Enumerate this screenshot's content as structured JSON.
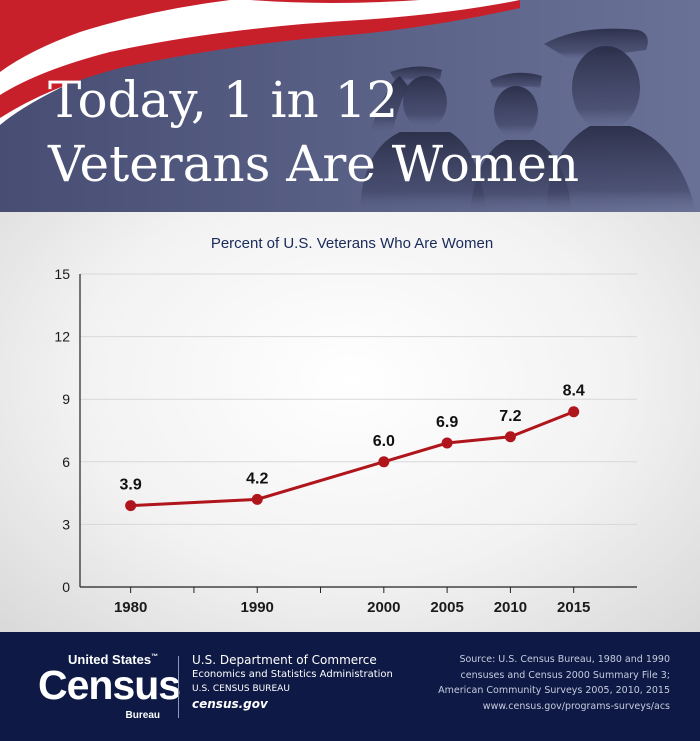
{
  "header": {
    "title_line1": "Today, 1 in 12",
    "title_line2": "Veterans Are Women"
  },
  "chart_data": {
    "type": "line",
    "title": "Percent of U.S. Veterans Who Are Women",
    "xlabel": "",
    "ylabel": "",
    "x": [
      1980,
      1990,
      2000,
      2005,
      2010,
      2015
    ],
    "series": [
      {
        "values": [
          3.9,
          4.2,
          6.0,
          6.9,
          7.2,
          8.4
        ]
      }
    ],
    "data_labels": [
      "3.9",
      "4.2",
      "6.0",
      "6.9",
      "7.2",
      "8.4"
    ],
    "xlim": [
      1976,
      2020
    ],
    "ylim": [
      0,
      15
    ],
    "y_ticks": [
      0,
      3,
      6,
      9,
      12,
      15
    ],
    "x_tick_labels": [
      1980,
      1990,
      2000,
      2005,
      2010,
      2015
    ],
    "minor_x_ticks": [
      1985,
      1995
    ],
    "grid": true,
    "line_color": "#b0151c"
  },
  "footer": {
    "logo_top": "United States",
    "logo_tm": "™",
    "logo_main": "Census",
    "logo_sub": "Bureau",
    "dept_line1": "U.S. Department of Commerce",
    "dept_line2": "Economics and Statistics Administration",
    "dept_line3": "U.S. CENSUS BUREAU",
    "dept_line4": "census.gov",
    "source_line1": "Source: U.S. Census Bureau, 1980 and 1990",
    "source_line2": "censuses and Census 2000 Summary File 3;",
    "source_line3": "American Community Surveys 2005, 2010, 2015",
    "source_url": "www.census.gov/programs-surveys/acs"
  }
}
